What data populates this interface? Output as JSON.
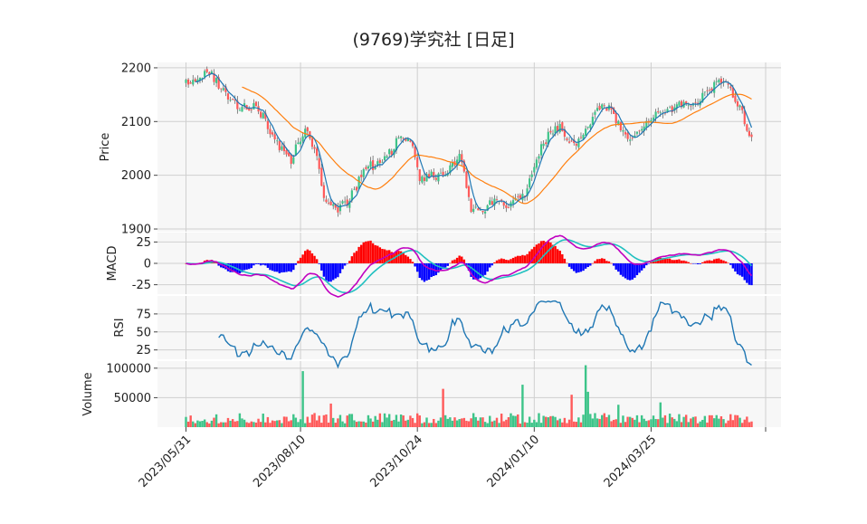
{
  "chart_data": {
    "type": "candlestick",
    "title": "(9769)学究社  [日足]",
    "x_tick_labels": [
      "2023/05/31",
      "2023/08/10",
      "2023/10/24",
      "2024/01/10",
      "2024/03/25"
    ],
    "x_tick_bar_index": [
      0,
      49,
      99,
      149,
      199
    ],
    "num_bars": 243,
    "panels": {
      "price": {
        "ylabel": "Price",
        "ylim": [
          1895,
          2210
        ],
        "yticks": [
          1900,
          2000,
          2100,
          2200
        ],
        "ma_short_color": "#1f77b4",
        "ma_long_color": "#ff7f0e",
        "anchors": [
          [
            0,
            2170
          ],
          [
            5,
            2185
          ],
          [
            10,
            2190
          ],
          [
            15,
            2165
          ],
          [
            22,
            2125
          ],
          [
            30,
            2130
          ],
          [
            40,
            2055
          ],
          [
            45,
            2030
          ],
          [
            50,
            2080
          ],
          [
            52,
            2085
          ],
          [
            56,
            2030
          ],
          [
            60,
            1945
          ],
          [
            64,
            1935
          ],
          [
            70,
            1955
          ],
          [
            77,
            2015
          ],
          [
            82,
            2020
          ],
          [
            88,
            2045
          ],
          [
            92,
            2075
          ],
          [
            96,
            2065
          ],
          [
            100,
            1995
          ],
          [
            107,
            2000
          ],
          [
            113,
            2010
          ],
          [
            117,
            2035
          ],
          [
            119,
            2000
          ],
          [
            122,
            1940
          ],
          [
            126,
            1935
          ],
          [
            132,
            1950
          ],
          [
            139,
            1945
          ],
          [
            145,
            1960
          ],
          [
            150,
            2035
          ],
          [
            156,
            2080
          ],
          [
            160,
            2090
          ],
          [
            166,
            2055
          ],
          [
            172,
            2085
          ],
          [
            176,
            2130
          ],
          [
            181,
            2125
          ],
          [
            186,
            2085
          ],
          [
            190,
            2060
          ],
          [
            194,
            2080
          ],
          [
            198,
            2105
          ],
          [
            204,
            2115
          ],
          [
            210,
            2130
          ],
          [
            216,
            2125
          ],
          [
            222,
            2150
          ],
          [
            226,
            2170
          ],
          [
            230,
            2180
          ],
          [
            232,
            2160
          ],
          [
            236,
            2135
          ],
          [
            242,
            2070
          ]
        ]
      },
      "macd": {
        "ylabel": "MACD",
        "ylim": [
          -36,
          36
        ],
        "yticks": [
          -25,
          0,
          25
        ],
        "macd_color": "#c000c0",
        "signal_color": "#20c0c0",
        "hist_pos_color": "#ff0000",
        "hist_neg_color": "#0000ff"
      },
      "rsi": {
        "ylabel": "RSI",
        "ylim": [
          12,
          100
        ],
        "yticks": [
          25,
          50,
          75
        ],
        "line_color": "#1f77b4"
      },
      "volume": {
        "ylabel": "Volume",
        "ylim": [
          0,
          112000
        ],
        "yticks": [
          50000,
          100000
        ],
        "up_color": "#3dc489",
        "down_color": "#ff5a5a",
        "spikes": [
          [
            50,
            95000
          ],
          [
            62,
            40000
          ],
          [
            110,
            65000
          ],
          [
            144,
            72000
          ],
          [
            165,
            55000
          ],
          [
            171,
            105000
          ],
          [
            172,
            60000
          ],
          [
            185,
            38000
          ],
          [
            203,
            42000
          ]
        ]
      }
    }
  }
}
